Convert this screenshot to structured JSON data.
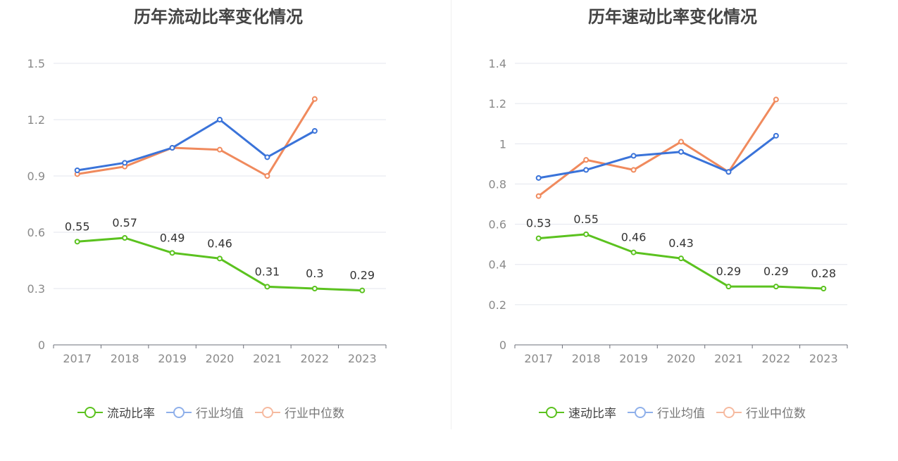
{
  "charts": [
    {
      "title": "历年流动比率变化情况",
      "legend": [
        "流动比率",
        "行业均值",
        "行业中位数"
      ]
    },
    {
      "title": "历年速动比率变化情况",
      "legend": [
        "速动比率",
        "行业均值",
        "行业中位数"
      ]
    }
  ],
  "colors": {
    "main": "#5bc21f",
    "mean": "#3a73d9",
    "median": "#f08a5d",
    "legend_mean": "#8fb0ea",
    "legend_median": "#f6baa0"
  },
  "chart_data": [
    {
      "type": "line",
      "title": "历年流动比率变化情况",
      "categories": [
        "2017",
        "2018",
        "2019",
        "2020",
        "2021",
        "2022",
        "2023"
      ],
      "ylim": [
        0,
        1.5
      ],
      "yticks": [
        "0",
        "0.3",
        "0.6",
        "0.9",
        "1.2",
        "1.5"
      ],
      "grid": true,
      "legend_position": "bottom",
      "series": [
        {
          "name": "流动比率",
          "values": [
            0.55,
            0.57,
            0.49,
            0.46,
            0.31,
            0.3,
            0.29
          ],
          "labels": [
            "0.55",
            "0.57",
            "0.49",
            "0.46",
            "0.31",
            "0.3",
            "0.29"
          ]
        },
        {
          "name": "行业均值",
          "values": [
            0.93,
            0.97,
            1.05,
            1.2,
            1.0,
            1.14,
            null
          ]
        },
        {
          "name": "行业中位数",
          "values": [
            0.91,
            0.95,
            1.05,
            1.04,
            0.9,
            1.31,
            null
          ]
        }
      ]
    },
    {
      "type": "line",
      "title": "历年速动比率变化情况",
      "categories": [
        "2017",
        "2018",
        "2019",
        "2020",
        "2021",
        "2022",
        "2023"
      ],
      "ylim": [
        0,
        1.4
      ],
      "yticks": [
        "0",
        "0.2",
        "0.4",
        "0.6",
        "0.8",
        "1",
        "1.2",
        "1.4"
      ],
      "grid": true,
      "legend_position": "bottom",
      "series": [
        {
          "name": "速动比率",
          "values": [
            0.53,
            0.55,
            0.46,
            0.43,
            0.29,
            0.29,
            0.28
          ],
          "labels": [
            "0.53",
            "0.55",
            "0.46",
            "0.43",
            "0.29",
            "0.29",
            "0.28"
          ]
        },
        {
          "name": "行业均值",
          "values": [
            0.83,
            0.87,
            0.94,
            0.96,
            0.86,
            1.04,
            null
          ]
        },
        {
          "name": "行业中位数",
          "values": [
            0.74,
            0.92,
            0.87,
            1.01,
            0.86,
            1.22,
            null
          ]
        }
      ]
    }
  ]
}
